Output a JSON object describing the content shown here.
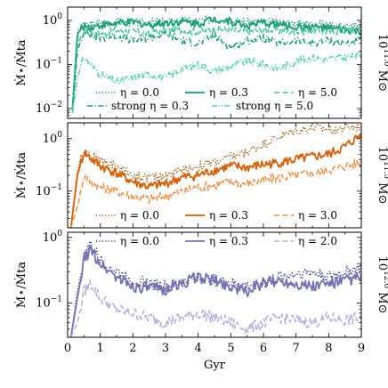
{
  "chart_data": [
    {
      "type": "line",
      "ylabel": "Ṁ⋆/Ṁta",
      "side_label": "10^11.0 M⊙",
      "ylog": true,
      "ylim": [
        0.006,
        2.0
      ],
      "yticks": [
        {
          "value": 0.01,
          "label": "10⁻²"
        },
        {
          "value": 0.1,
          "label": "10⁻¹"
        },
        {
          "value": 1,
          "label": "10⁰"
        }
      ],
      "xlim": [
        0,
        9
      ],
      "legend_loc": "lower-right",
      "legend_cols": 3,
      "series": [
        {
          "name": "η = 0.0",
          "color": "#1b9e77",
          "dash": "dotted",
          "x": [
            0.15,
            0.3,
            0.5,
            0.7,
            1,
            1.5,
            2,
            2.5,
            3,
            3.5,
            4,
            4.5,
            5,
            5.5,
            6,
            6.5,
            7,
            7.5,
            8,
            8.5,
            9
          ],
          "y": [
            0.01,
            0.6,
            0.78,
            0.82,
            0.88,
            0.95,
            0.9,
            0.92,
            0.95,
            1.0,
            0.98,
            1.05,
            1.0,
            0.95,
            0.92,
            0.9,
            0.88,
            0.85,
            0.8,
            0.75,
            0.7
          ]
        },
        {
          "name": "η = 0.3",
          "color": "#1b9e77",
          "dash": "solid",
          "x": [
            0.15,
            0.3,
            0.5,
            0.7,
            1,
            1.5,
            2,
            2.5,
            3,
            3.5,
            4,
            4.5,
            5,
            5.5,
            6,
            6.5,
            7,
            7.5,
            8,
            8.5,
            9
          ],
          "y": [
            0.01,
            0.5,
            0.75,
            0.7,
            0.78,
            0.85,
            0.9,
            0.8,
            0.88,
            0.95,
            0.85,
            1.1,
            0.95,
            0.75,
            0.88,
            0.8,
            0.7,
            0.72,
            0.65,
            0.6,
            0.55
          ]
        },
        {
          "name": "η = 5.0",
          "color": "#41c896",
          "dash": "dashed",
          "x": [
            0.15,
            0.3,
            0.5,
            0.7,
            1,
            1.5,
            2,
            2.5,
            3,
            3.5,
            4,
            4.5,
            5,
            5.5,
            6,
            6.5,
            7,
            7.5,
            8,
            8.5,
            9
          ],
          "y": [
            0.01,
            0.3,
            0.55,
            0.5,
            0.5,
            0.6,
            0.55,
            0.5,
            0.58,
            0.6,
            0.55,
            0.65,
            0.6,
            0.55,
            0.6,
            0.58,
            0.55,
            0.6,
            0.55,
            0.6,
            0.62
          ]
        },
        {
          "name": "strong η = 0.3",
          "color": "#1b9e77",
          "dash": "dashdot",
          "x": [
            0.15,
            0.3,
            0.5,
            0.7,
            1,
            1.5,
            2,
            2.5,
            3,
            3.5,
            4,
            4.5,
            5,
            5.5,
            6,
            6.5,
            7,
            7.5,
            8,
            8.5,
            9
          ],
          "y": [
            0.008,
            0.2,
            0.6,
            0.45,
            0.4,
            0.45,
            0.35,
            0.4,
            0.5,
            0.35,
            0.3,
            0.45,
            0.25,
            0.35,
            0.4,
            0.3,
            0.35,
            0.3,
            0.35,
            0.3,
            0.35
          ]
        },
        {
          "name": "strong η = 5.0",
          "color": "#52d6a5",
          "dash": "dashdotdot",
          "x": [
            0.15,
            0.3,
            0.5,
            0.7,
            1,
            1.5,
            2,
            2.5,
            3,
            3.5,
            4,
            4.5,
            5,
            5.5,
            6,
            6.5,
            7,
            7.5,
            8,
            8.5,
            9
          ],
          "y": [
            0.008,
            0.05,
            0.15,
            0.1,
            0.06,
            0.04,
            0.05,
            0.06,
            0.05,
            0.08,
            0.1,
            0.07,
            0.09,
            0.12,
            0.1,
            0.08,
            0.12,
            0.14,
            0.13,
            0.15,
            0.16
          ]
        }
      ]
    },
    {
      "type": "line",
      "ylabel": "Ṁ⋆/Ṁta",
      "side_label": "10^11.5 M⊙",
      "ylog": true,
      "ylim": [
        0.02,
        2.0
      ],
      "yticks": [
        {
          "value": 0.1,
          "label": "10⁻¹"
        },
        {
          "value": 1,
          "label": "10⁰"
        }
      ],
      "xlim": [
        0,
        9
      ],
      "legend_loc": "lower-right",
      "legend_cols": 3,
      "series": [
        {
          "name": "η = 0.0",
          "color": "#a6611a",
          "dash": "dotted",
          "x": [
            0.1,
            0.3,
            0.5,
            0.7,
            1,
            1.5,
            2,
            2.5,
            3,
            3.5,
            4,
            4.5,
            5,
            5.5,
            6,
            6.5,
            7,
            7.5,
            8,
            8.5,
            9
          ],
          "y": [
            0.02,
            0.25,
            0.65,
            0.5,
            0.38,
            0.3,
            0.2,
            0.18,
            0.2,
            0.25,
            0.3,
            0.35,
            0.45,
            0.55,
            0.8,
            1.1,
            1.4,
            1.6,
            1.5,
            1.6,
            1.7
          ]
        },
        {
          "name": "η = 0.3",
          "color": "#d95f02",
          "dash": "solid",
          "x": [
            0.1,
            0.3,
            0.5,
            0.7,
            1,
            1.5,
            2,
            2.5,
            3,
            3.5,
            4,
            4.5,
            5,
            5.5,
            6,
            6.5,
            7,
            7.5,
            8,
            8.5,
            9
          ],
          "y": [
            0.02,
            0.2,
            0.55,
            0.42,
            0.3,
            0.22,
            0.15,
            0.12,
            0.14,
            0.18,
            0.2,
            0.25,
            0.3,
            0.28,
            0.32,
            0.35,
            0.4,
            0.45,
            0.5,
            0.7,
            1.2
          ]
        },
        {
          "name": "η = 3.0",
          "color": "#f28e45",
          "dash": "dashed",
          "x": [
            0.1,
            0.3,
            0.5,
            0.7,
            1,
            1.5,
            2,
            2.5,
            3,
            3.5,
            4,
            4.5,
            5,
            5.5,
            6,
            6.5,
            7,
            7.5,
            8,
            8.5,
            9
          ],
          "y": [
            0.02,
            0.05,
            0.2,
            0.15,
            0.12,
            0.1,
            0.08,
            0.07,
            0.08,
            0.1,
            0.12,
            0.13,
            0.15,
            0.14,
            0.16,
            0.18,
            0.2,
            0.22,
            0.25,
            0.3,
            0.35
          ]
        }
      ]
    },
    {
      "type": "line",
      "ylabel": "Ṁ⋆/Ṁta",
      "side_label": "10^12.0 M⊙",
      "ylog": true,
      "ylim": [
        0.03,
        1.2
      ],
      "yticks": [
        {
          "value": 0.1,
          "label": "10⁻¹"
        },
        {
          "value": 1,
          "label": "10⁰"
        }
      ],
      "xlim": [
        0,
        9
      ],
      "xticks": [
        0,
        1,
        2,
        3,
        4,
        5,
        6,
        7,
        8,
        9
      ],
      "xlabel": "Gyr",
      "legend_loc": "top-right",
      "legend_cols": 3,
      "series": [
        {
          "name": "η = 0.0",
          "color": "#3a3a8c",
          "dash": "dotted",
          "x": [
            0.1,
            0.3,
            0.5,
            0.7,
            1,
            1.5,
            2,
            2.5,
            3,
            3.5,
            4,
            4.5,
            5,
            5.5,
            6,
            6.5,
            7,
            7.5,
            8,
            8.5,
            9
          ],
          "y": [
            0.03,
            0.15,
            0.5,
            0.8,
            0.45,
            0.3,
            0.22,
            0.2,
            0.18,
            0.2,
            0.25,
            0.22,
            0.2,
            0.18,
            0.2,
            0.25,
            0.28,
            0.3,
            0.25,
            0.3,
            0.35
          ]
        },
        {
          "name": "η = 0.3",
          "color": "#7570b3",
          "dash": "solid",
          "x": [
            0.1,
            0.3,
            0.5,
            0.7,
            1,
            1.5,
            2,
            2.5,
            3,
            3.5,
            4,
            4.5,
            5,
            5.5,
            6,
            6.5,
            7,
            7.5,
            8,
            8.5,
            9
          ],
          "y": [
            0.03,
            0.12,
            0.45,
            0.65,
            0.4,
            0.25,
            0.18,
            0.17,
            0.16,
            0.2,
            0.25,
            0.22,
            0.18,
            0.15,
            0.2,
            0.22,
            0.2,
            0.18,
            0.2,
            0.22,
            0.25
          ]
        },
        {
          "name": "η = 2.0",
          "color": "#b3aee0",
          "dash": "dashed",
          "x": [
            0.1,
            0.3,
            0.5,
            0.7,
            1,
            1.5,
            2,
            2.5,
            3,
            3.5,
            4,
            4.5,
            5,
            5.5,
            6,
            6.5,
            7,
            7.5,
            8,
            8.5,
            9
          ],
          "y": [
            0.03,
            0.05,
            0.15,
            0.2,
            0.12,
            0.08,
            0.07,
            0.06,
            0.05,
            0.06,
            0.07,
            0.06,
            0.05,
            0.04,
            0.05,
            0.06,
            0.055,
            0.05,
            0.06,
            0.055,
            0.06
          ]
        }
      ]
    }
  ]
}
